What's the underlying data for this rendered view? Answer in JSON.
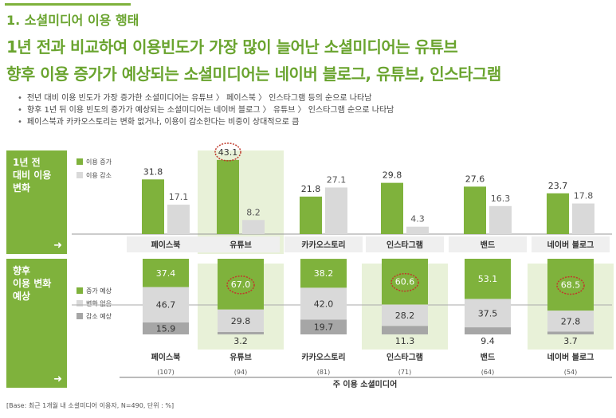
{
  "header": {
    "section_title": "1. 소셜미디어 이용 행태",
    "headline_1": "1년 전과 비교하여 이용빈도가 가장 많이 늘어난 소셜미디어는 유튜브",
    "headline_2": "향후 이용 증가가 예상되는 소셜미디어는 네이버 블로그, 유튜브, 인스타그램"
  },
  "bullets": [
    "전년 대비 이용 빈도가 가장 증가한 소셜미디어는 유튜브 〉 페이스북 〉 인스타그램 등의 순으로 나타남",
    "향후 1년 뒤 이용 빈도의 증가가 예상되는 소셜미디어는 네이버 블로그 〉 유튜브 〉 인스타그램 순으로 나타남",
    "페이스북과 카카오스토리는 변화 없거나, 이용이 감소한다는 비중이 상대적으로 큼"
  ],
  "panel_labels": {
    "top": "1년 전\n대비 이용\n변화",
    "bottom": "향후\n이용 변화\n예상",
    "arrow": "➜"
  },
  "footnote": "[Base: 최근 1개월 내 소셜미디어 이용자, N=490, 단위 : %]",
  "colors": {
    "green": "#7fb23c",
    "light_gray": "#d9d9d9",
    "mid_gray": "#bfbfbf",
    "dark_gray": "#a6a6a6",
    "highlight_bg": "#e8f1d8",
    "circle": "#c0392b"
  },
  "chart_data": [
    {
      "type": "bar",
      "title": "1년 전 대비 이용 변화",
      "categories": [
        "페이스북",
        "유튜브",
        "카카오스토리",
        "인스타그램",
        "밴드",
        "네이버 블로그"
      ],
      "series": [
        {
          "name": "이용 증가",
          "values": [
            31.8,
            43.1,
            21.8,
            29.8,
            27.6,
            23.7
          ]
        },
        {
          "name": "이용 감소",
          "values": [
            17.1,
            8.2,
            27.1,
            4.3,
            16.3,
            17.8
          ]
        }
      ],
      "highlighted_category": "유튜브",
      "circled_label": "43.1",
      "ylim": [
        0,
        50
      ]
    },
    {
      "type": "bar",
      "title": "향후 이용 변화 예상",
      "stacked": true,
      "xlabel": "주 이용 소셜미디어",
      "categories": [
        "페이스북",
        "유튜브",
        "카카오스토리",
        "인스타그램",
        "밴드",
        "네이버 블로그"
      ],
      "base_counts": [
        "(107)",
        "(94)",
        "(81)",
        "(71)",
        "(64)",
        "(54)"
      ],
      "series": [
        {
          "name": "증가 예상",
          "values": [
            37.4,
            67.0,
            38.2,
            60.6,
            53.1,
            68.5
          ]
        },
        {
          "name": "변화 없음",
          "values": [
            46.7,
            29.8,
            42.0,
            28.2,
            37.5,
            27.8
          ]
        },
        {
          "name": "감소 예상",
          "values": [
            15.9,
            3.2,
            19.7,
            11.3,
            9.4,
            3.7
          ]
        }
      ],
      "value_labels": {
        "증가 예상": [
          "37.4",
          "67.0",
          "38.2",
          "60.6",
          "53.1",
          "68.5"
        ],
        "변화 없음": [
          "46.7",
          "29.8",
          "42.0",
          "28.2",
          "37.5",
          "27.8"
        ],
        "감소 예상": [
          "15.9",
          "3.2",
          "19.7",
          "11.3",
          "9.4",
          "3.7"
        ]
      },
      "highlighted_categories": [
        "유튜브",
        "인스타그램",
        "네이버 블로그"
      ],
      "circled_labels": [
        "67.0",
        "60.6",
        "68.5"
      ]
    }
  ]
}
